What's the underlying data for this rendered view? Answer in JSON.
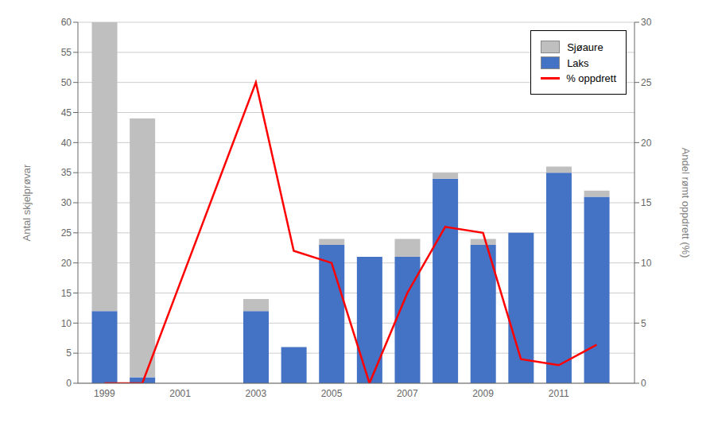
{
  "chart_data": {
    "type": "bar",
    "stacked": true,
    "x": [
      1999,
      2000,
      2003,
      2004,
      2005,
      2006,
      2007,
      2008,
      2009,
      2010,
      2011,
      2012
    ],
    "xlim": [
      1998.3,
      2013.0
    ],
    "xticks": [
      1999,
      2001,
      2003,
      2005,
      2007,
      2009,
      2011
    ],
    "ylabel": "Antal skjelprøvar",
    "y2label": "Andel rømt oppdrett (%)",
    "ylim": [
      0,
      60
    ],
    "yticks": [
      0,
      5,
      10,
      15,
      20,
      25,
      30,
      35,
      40,
      45,
      50,
      55,
      60
    ],
    "y2lim": [
      0,
      30
    ],
    "y2ticks": [
      0,
      5,
      10,
      15,
      20,
      25,
      30
    ],
    "grid": true,
    "legend": "upper right",
    "series": [
      {
        "name": "Laks",
        "color": "#4472C4",
        "values": [
          12,
          1,
          12,
          6,
          23,
          21,
          21,
          34,
          23,
          25,
          35,
          31
        ]
      },
      {
        "name": "Sjøaure",
        "color": "#BFBFBF",
        "values": [
          48,
          43,
          2,
          0,
          1,
          0,
          3,
          1,
          1,
          0,
          1,
          1
        ]
      },
      {
        "name": "% oppdrett",
        "type": "line",
        "axis": "y2",
        "color": "#FF0000",
        "values": [
          0,
          0,
          25,
          11,
          10,
          0,
          7.5,
          13,
          12.5,
          2,
          1.5,
          3.2
        ]
      }
    ]
  }
}
